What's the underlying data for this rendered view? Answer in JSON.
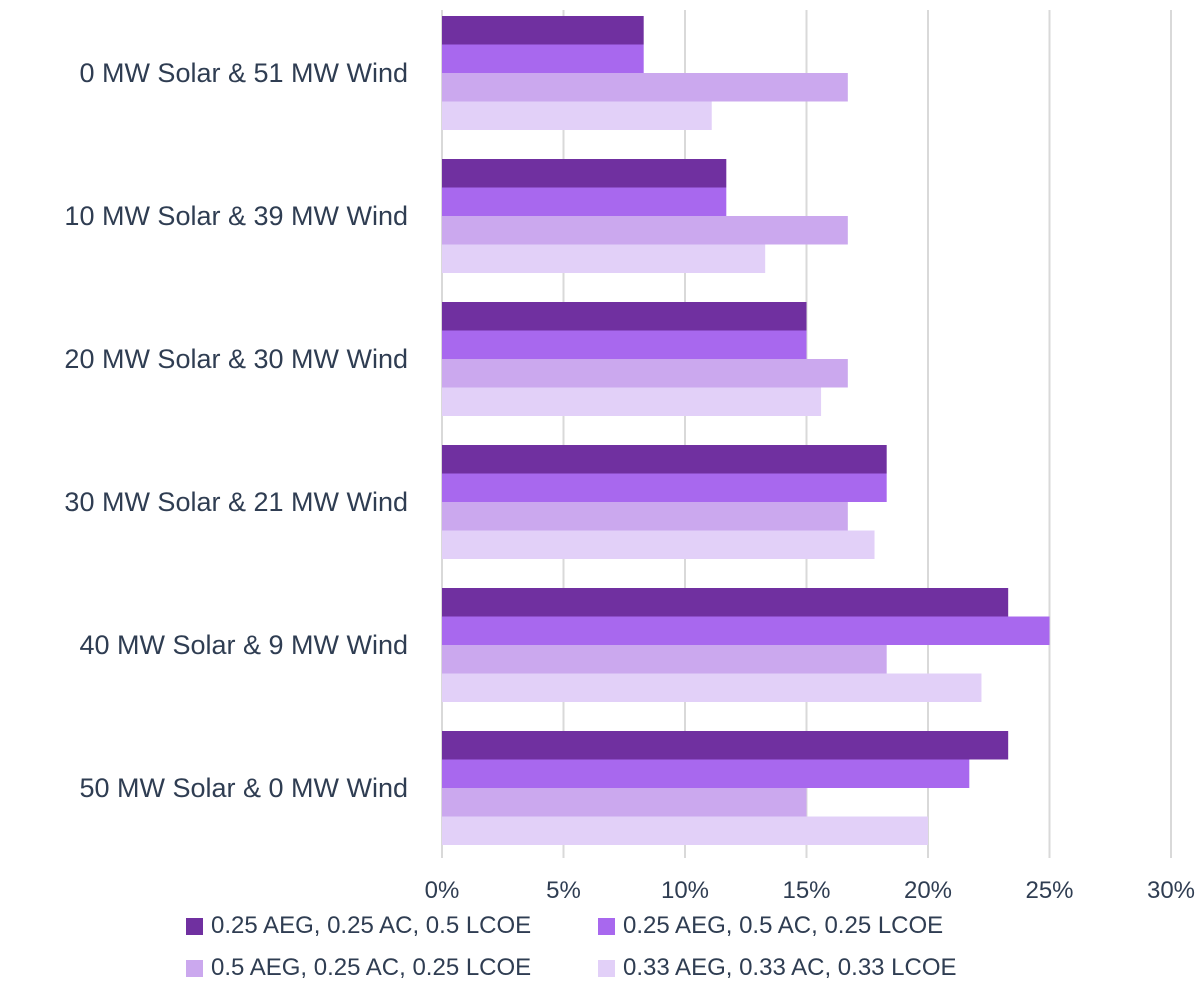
{
  "chart_data": {
    "type": "bar",
    "orientation": "horizontal",
    "categories": [
      "0 MW Solar & 51 MW Wind",
      "10 MW Solar & 39 MW Wind",
      "20 MW Solar & 30 MW Wind",
      "30 MW Solar & 21 MW Wind",
      "40 MW Solar & 9 MW Wind",
      "50 MW Solar & 0 MW Wind"
    ],
    "series": [
      {
        "name": "0.25 AEG, 0.25 AC, 0.5 LCOE",
        "color": "#7030a0",
        "values": [
          8.3,
          11.7,
          15.0,
          18.3,
          23.3,
          23.3
        ]
      },
      {
        "name": "0.25 AEG, 0.5 AC, 0.25 LCOE",
        "color": "#a868ee",
        "values": [
          8.3,
          11.7,
          15.0,
          18.3,
          25.0,
          21.7
        ]
      },
      {
        "name": "0.5 AEG, 0.25 AC, 0.25 LCOE",
        "color": "#cba8ee",
        "values": [
          16.7,
          16.7,
          16.7,
          16.7,
          18.3,
          15.0
        ]
      },
      {
        "name": "0.33 AEG, 0.33 AC, 0.33 LCOE",
        "color": "#e2d0f8",
        "values": [
          11.1,
          13.3,
          15.6,
          17.8,
          22.2,
          20.0
        ]
      }
    ],
    "x_ticks": [
      "0%",
      "5%",
      "10%",
      "15%",
      "20%",
      "25%",
      "30%"
    ],
    "xlim": [
      0,
      30
    ],
    "grid": true,
    "legend_position": "bottom",
    "title": "",
    "xlabel": "",
    "ylabel": ""
  },
  "colors": {
    "grid": "#d9d9d9",
    "text": "#2f3d52"
  }
}
